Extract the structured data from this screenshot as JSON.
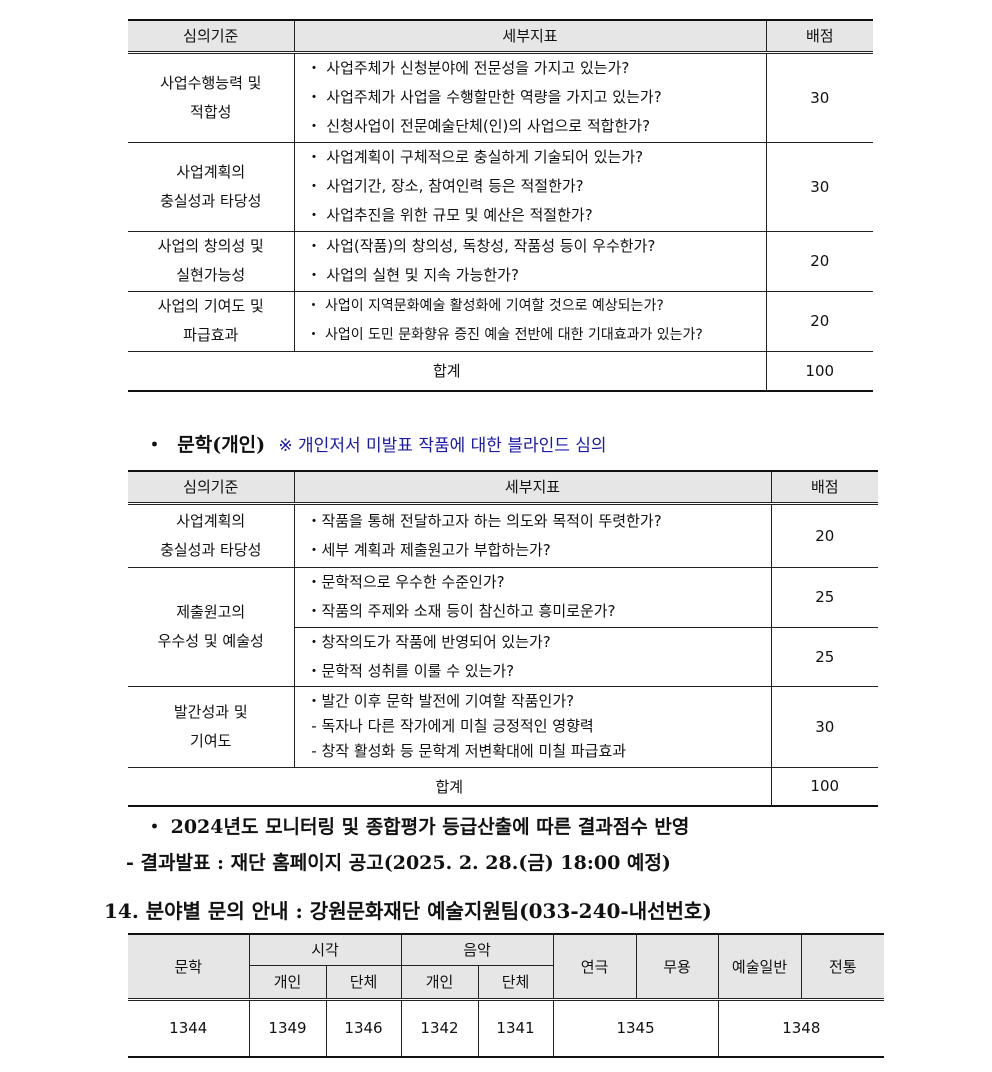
{
  "table1": {
    "headers": [
      "심의기준",
      "세부지표",
      "배점"
    ],
    "rows": [
      {
        "criterion": [
          "사업수행능력 및",
          "적합성"
        ],
        "indicators": [
          "・ 사업주체가 신청분야에 전문성을 가지고 있는가?",
          "・ 사업주체가 사업을 수행할만한 역량을 가지고 있는가?",
          "・ 신청사업이 전문예술단체(인)의 사업으로 적합한가?"
        ],
        "score": "30"
      },
      {
        "criterion": [
          "사업계획의",
          "충실성과 타당성"
        ],
        "indicators": [
          "・ 사업계획이 구체적으로 충실하게 기술되어 있는가?",
          "・ 사업기간, 장소, 참여인력 등은 적절한가?",
          "・ 사업추진을 위한 규모 및 예산은 적절한가?"
        ],
        "score": "30"
      },
      {
        "criterion": [
          "사업의 창의성 및",
          "실현가능성"
        ],
        "indicators": [
          "・ 사업(작품)의 창의성, 독창성, 작품성 등이 우수한가?",
          "・ 사업의 실현 및 지속 가능한가?"
        ],
        "score": "20"
      },
      {
        "criterion": [
          "사업의 기여도 및",
          "파급효과"
        ],
        "indicators": [
          "・ 사업이 지역문화예술 활성화에 기여할 것으로 예상되는가?",
          "・ 사업이 도민 문화향유 증진 예술 전반에 대한 기대효과가 있는가?"
        ],
        "score": "20"
      }
    ],
    "total_label": "합계",
    "total": "100"
  },
  "section_literature": {
    "bullet": "・",
    "title": "문학(개인)",
    "note": "※ 개인저서 미발표 작품에 대한 블라인드 심의",
    "note_color": "#1a1aa6"
  },
  "table2": {
    "headers": [
      "심의기준",
      "세부지표",
      "배점"
    ],
    "rows": [
      {
        "criterion": [
          "사업계획의",
          "충실성과 타당성"
        ],
        "indicators": [
          "・작품을 통해 전달하고자 하는 의도와 목적이 뚜렷한가?",
          "・세부 계획과 제출원고가 부합하는가?"
        ],
        "score": "20"
      },
      {
        "criterion": [
          "제출원고의",
          "우수성 및 예술성"
        ],
        "indicators": [
          "・문학적으로 우수한 수준인가?",
          "・작품의 주제와 소재 등이 참신하고 흥미로운가?"
        ],
        "score": "25"
      },
      {
        "indicators": [
          "・창작의도가 작품에 반영되어 있는가?",
          "・문학적 성취를 이룰 수 있는가?"
        ],
        "score": "25"
      },
      {
        "criterion": [
          "발간성과 및",
          "기여도"
        ],
        "indicators": [
          "・발간 이후 문학 발전에 기여할 작품인가?",
          " - 독자나 다른 작가에게 미칠 긍정적인 영향력",
          " - 창작 활성화 등 문학계 저변확대에 미칠 파급효과"
        ],
        "score": "30"
      }
    ],
    "total_label": "합계",
    "total": "100"
  },
  "notes": {
    "line1": "・ 2024년도 모니터링 및 종합평가 등급산출에 따른 결과점수 반영",
    "line2": "- 결과발표 : 재단 홈페이지 공고(2025. 2. 28.(금) 18:00 예정)"
  },
  "section14": {
    "title": "14. 분야별 문의 안내 : 강원문화재단 예술지원팀(033-240-내선번호)"
  },
  "table3": {
    "h": {
      "lit": "문학",
      "visual": "시각",
      "music": "음악",
      "theater": "연극",
      "dance": "무용",
      "general": "예술일반",
      "trad": "전통",
      "ind": "개인",
      "group": "단체"
    },
    "values": [
      "1344",
      "1349",
      "1346",
      "1342",
      "1341",
      "1345",
      "1348"
    ]
  }
}
